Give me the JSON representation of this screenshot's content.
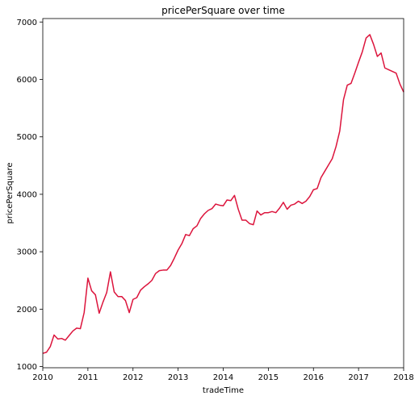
{
  "chart_data": {
    "type": "line",
    "title": "pricePerSquare over time",
    "xlabel": "tradeTime",
    "ylabel": "pricePerSquare",
    "xlim": [
      2010.0,
      2018.0
    ],
    "ylim": [
      980,
      7060
    ],
    "x_ticks": [
      2010,
      2011,
      2012,
      2013,
      2014,
      2015,
      2016,
      2017,
      2018
    ],
    "y_ticks": [
      1000,
      2000,
      3000,
      4000,
      5000,
      6000,
      7000
    ],
    "grid": false,
    "legend": "none",
    "series": [
      {
        "color": "#dc143c",
        "x": [
          2010.0,
          2010.083,
          2010.167,
          2010.25,
          2010.333,
          2010.417,
          2010.5,
          2010.583,
          2010.667,
          2010.75,
          2010.833,
          2010.917,
          2011.0,
          2011.083,
          2011.167,
          2011.25,
          2011.333,
          2011.417,
          2011.5,
          2011.583,
          2011.667,
          2011.75,
          2011.833,
          2011.917,
          2012.0,
          2012.083,
          2012.167,
          2012.25,
          2012.333,
          2012.417,
          2012.5,
          2012.583,
          2012.667,
          2012.75,
          2012.833,
          2012.917,
          2013.0,
          2013.083,
          2013.167,
          2013.25,
          2013.333,
          2013.417,
          2013.5,
          2013.583,
          2013.667,
          2013.75,
          2013.833,
          2013.917,
          2014.0,
          2014.083,
          2014.167,
          2014.25,
          2014.333,
          2014.417,
          2014.5,
          2014.583,
          2014.667,
          2014.75,
          2014.833,
          2014.917,
          2015.0,
          2015.083,
          2015.167,
          2015.25,
          2015.333,
          2015.417,
          2015.5,
          2015.583,
          2015.667,
          2015.75,
          2015.833,
          2015.917,
          2016.0,
          2016.083,
          2016.167,
          2016.25,
          2016.333,
          2016.417,
          2016.5,
          2016.583,
          2016.667,
          2016.75,
          2016.833,
          2016.917,
          2017.0,
          2017.083,
          2017.167,
          2017.25,
          2017.333,
          2017.417,
          2017.5,
          2017.583,
          2017.667,
          2017.75,
          2017.833,
          2017.917,
          2018.0
        ],
        "y": [
          1230,
          1250,
          1350,
          1550,
          1480,
          1490,
          1460,
          1540,
          1620,
          1670,
          1660,
          1940,
          2540,
          2320,
          2250,
          1930,
          2120,
          2290,
          2650,
          2300,
          2220,
          2220,
          2150,
          1940,
          2170,
          2200,
          2330,
          2390,
          2440,
          2500,
          2620,
          2670,
          2680,
          2680,
          2760,
          2890,
          3030,
          3140,
          3300,
          3280,
          3400,
          3450,
          3580,
          3660,
          3720,
          3750,
          3830,
          3810,
          3800,
          3900,
          3890,
          3980,
          3740,
          3550,
          3550,
          3490,
          3470,
          3710,
          3640,
          3680,
          3680,
          3700,
          3680,
          3760,
          3860,
          3740,
          3810,
          3830,
          3880,
          3840,
          3880,
          3960,
          4080,
          4100,
          4290,
          4400,
          4510,
          4620,
          4830,
          5100,
          5650,
          5900,
          5930,
          6110,
          6300,
          6480,
          6720,
          6780,
          6610,
          6400,
          6460,
          6200,
          6170,
          6140,
          6110,
          5920,
          5780
        ]
      }
    ]
  }
}
